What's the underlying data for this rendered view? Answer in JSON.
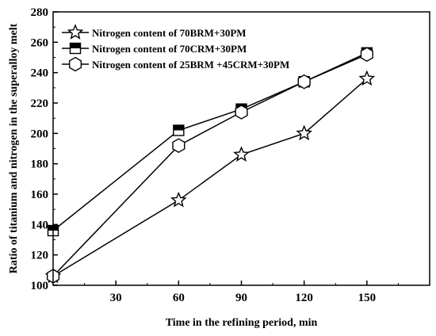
{
  "chart_data": {
    "type": "line",
    "xlabel": "Time in the refining period, min",
    "ylabel": "Ratio of titanium and nitrogen in the superalloy melt",
    "xlim": [
      0,
      180
    ],
    "ylim": [
      100,
      280
    ],
    "xticks": [
      30,
      60,
      90,
      120,
      150
    ],
    "yticks": [
      100,
      120,
      140,
      160,
      180,
      200,
      220,
      240,
      260,
      280
    ],
    "grid": false,
    "legend_position": "top-left",
    "series": [
      {
        "name": "Nitrogen content of 70BRM+30PM",
        "marker": "star",
        "x": [
          0,
          60,
          90,
          120,
          150
        ],
        "y": [
          106,
          156,
          186,
          200,
          236
        ]
      },
      {
        "name": "Nitrogen content of 70CRM+30PM",
        "marker": "half-filled-square",
        "x": [
          0,
          60,
          90,
          120,
          150
        ],
        "y": [
          136,
          202,
          216,
          234,
          253
        ]
      },
      {
        "name": "Nitrogen content of 25BRM +45CRM+30PM",
        "marker": "hexagon",
        "x": [
          0,
          60,
          90,
          120,
          150
        ],
        "y": [
          106,
          192,
          214,
          234,
          252
        ]
      }
    ]
  }
}
